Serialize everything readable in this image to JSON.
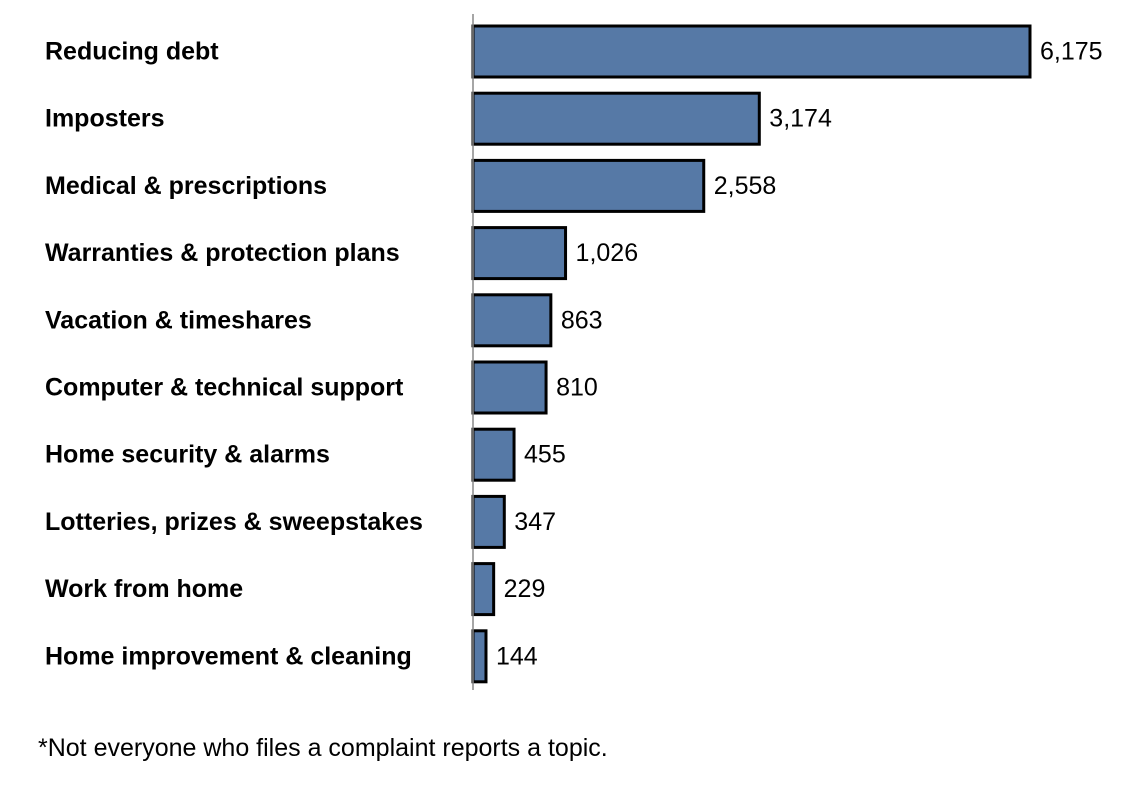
{
  "chart_data": {
    "type": "bar",
    "orientation": "horizontal",
    "categories": [
      "Reducing debt",
      "Imposters",
      "Medical & prescriptions",
      "Warranties & protection plans",
      "Vacation & timeshares",
      "Computer & technical support",
      "Home security & alarms",
      "Lotteries, prizes & sweepstakes",
      "Work from home",
      "Home improvement & cleaning"
    ],
    "values": [
      6175,
      3174,
      2558,
      1026,
      863,
      810,
      455,
      347,
      229,
      144
    ],
    "value_labels": [
      "6,175",
      "3,174",
      "2,558",
      "1,026",
      "863",
      "810",
      "455",
      "347",
      "229",
      "144"
    ],
    "xlim": [
      0,
      6175
    ],
    "grid": false,
    "legend": "none",
    "bar_color": "#5679A6",
    "bar_edge_color": "#000000"
  },
  "footnote": "*Not everyone who files a complaint reports a topic."
}
